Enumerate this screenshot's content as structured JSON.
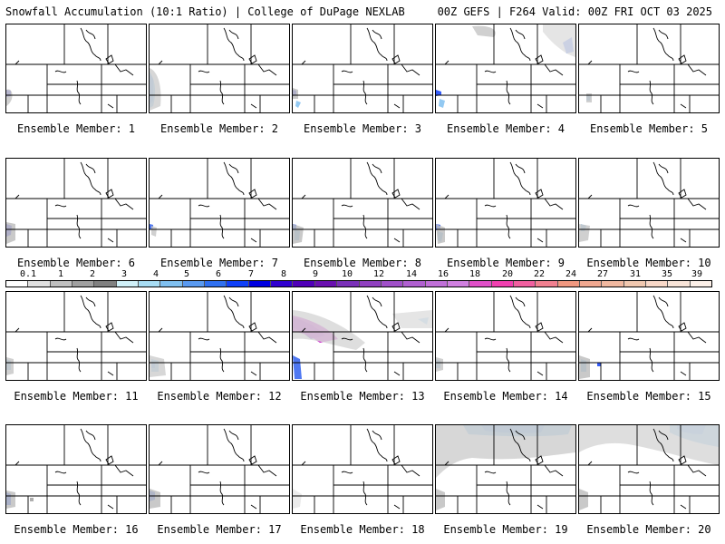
{
  "header": {
    "title_left": "Snowfall Accumulation (10:1 Ratio) | College of DuPage NEXLAB",
    "title_right": "00Z GEFS | F264 Valid: 00Z FRI OCT 03 2025"
  },
  "legend": {
    "ticks": [
      "0.1",
      "1",
      "2",
      "3",
      "4",
      "5",
      "6",
      "7",
      "8",
      "9",
      "10",
      "12",
      "14",
      "16",
      "18",
      "20",
      "22",
      "24",
      "27",
      "31",
      "35",
      "39"
    ],
    "colors": [
      "#ffffff",
      "#e0e0e0",
      "#c0c0c0",
      "#a0a0a0",
      "#808080",
      "#d0f0f8",
      "#a8ddf4",
      "#80c0f0",
      "#5a9af0",
      "#3070f0",
      "#1040f8",
      "#0000e0",
      "#3000d0",
      "#5000b8",
      "#6a10b0",
      "#7a30b8",
      "#9040c0",
      "#a050c8",
      "#b060d0",
      "#c070d8",
      "#d080e0",
      "#e050c8",
      "#f040b0",
      "#f060a0",
      "#f08090",
      "#f09880",
      "#f0a890",
      "#f0b8a0",
      "#f0c8b0",
      "#f8d8c8",
      "#f8e4d8",
      "#fcf0e8"
    ]
  },
  "members": [
    {
      "label": "Ensemble Member: 1"
    },
    {
      "label": "Ensemble Member: 2"
    },
    {
      "label": "Ensemble Member: 3"
    },
    {
      "label": "Ensemble Member: 4"
    },
    {
      "label": "Ensemble Member: 5"
    },
    {
      "label": "Ensemble Member: 6"
    },
    {
      "label": "Ensemble Member: 7"
    },
    {
      "label": "Ensemble Member: 8"
    },
    {
      "label": "Ensemble Member: 9"
    },
    {
      "label": "Ensemble Member: 10"
    },
    {
      "label": "Ensemble Member: 11"
    },
    {
      "label": "Ensemble Member: 12"
    },
    {
      "label": "Ensemble Member: 13"
    },
    {
      "label": "Ensemble Member: 14"
    },
    {
      "label": "Ensemble Member: 15"
    },
    {
      "label": "Ensemble Member: 16"
    },
    {
      "label": "Ensemble Member: 17"
    },
    {
      "label": "Ensemble Member: 18"
    },
    {
      "label": "Ensemble Member: 19"
    },
    {
      "label": "Ensemble Member: 20"
    }
  ]
}
